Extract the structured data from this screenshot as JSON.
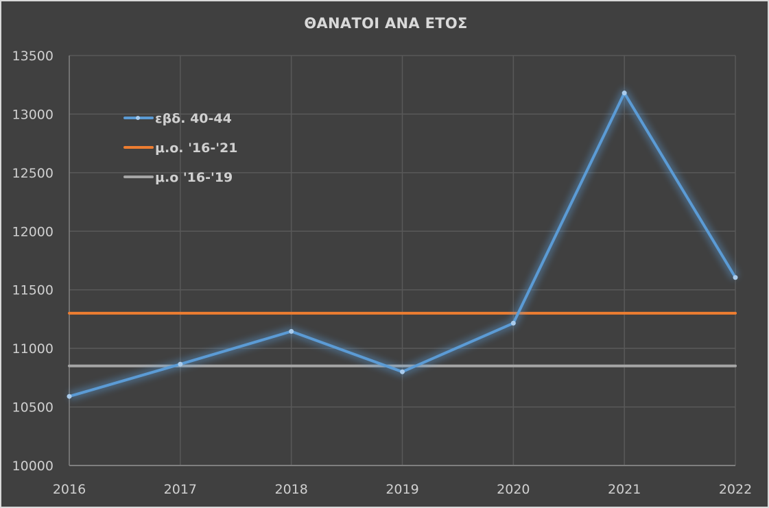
{
  "chart_data": {
    "type": "line",
    "title": "ΘΑΝΑΤΟΙ ΑΝΑ ΕΤΟΣ",
    "xlabel": "",
    "ylabel": "",
    "categories": [
      "2016",
      "2017",
      "2018",
      "2019",
      "2020",
      "2021",
      "2022"
    ],
    "series": [
      {
        "name": "εβδ. 40-44",
        "color": "#5b9bd5",
        "markers": true,
        "values": [
          10590,
          10865,
          11145,
          10800,
          11215,
          13180,
          11605
        ]
      },
      {
        "name": "μ.ο. '16-'21",
        "color": "#ed7d31",
        "markers": false,
        "values": [
          11300,
          11300,
          11300,
          11300,
          11300,
          11300,
          11300
        ]
      },
      {
        "name": "μ.ο '16-'19",
        "color": "#a5a5a5",
        "markers": false,
        "values": [
          10850,
          10850,
          10850,
          10850,
          10850,
          10850,
          10850
        ]
      }
    ],
    "ylim": [
      10000,
      13500
    ],
    "yticks": [
      "10000",
      "10500",
      "11000",
      "11500",
      "12000",
      "12500",
      "13000",
      "13500"
    ],
    "grid": true,
    "legend_position": "inside-top-left",
    "background": "#404040"
  },
  "legend": {
    "items": [
      {
        "label": "εβδ. 40-44"
      },
      {
        "label": "μ.ο. '16-'21"
      },
      {
        "label": "μ.ο '16-'19"
      }
    ]
  }
}
